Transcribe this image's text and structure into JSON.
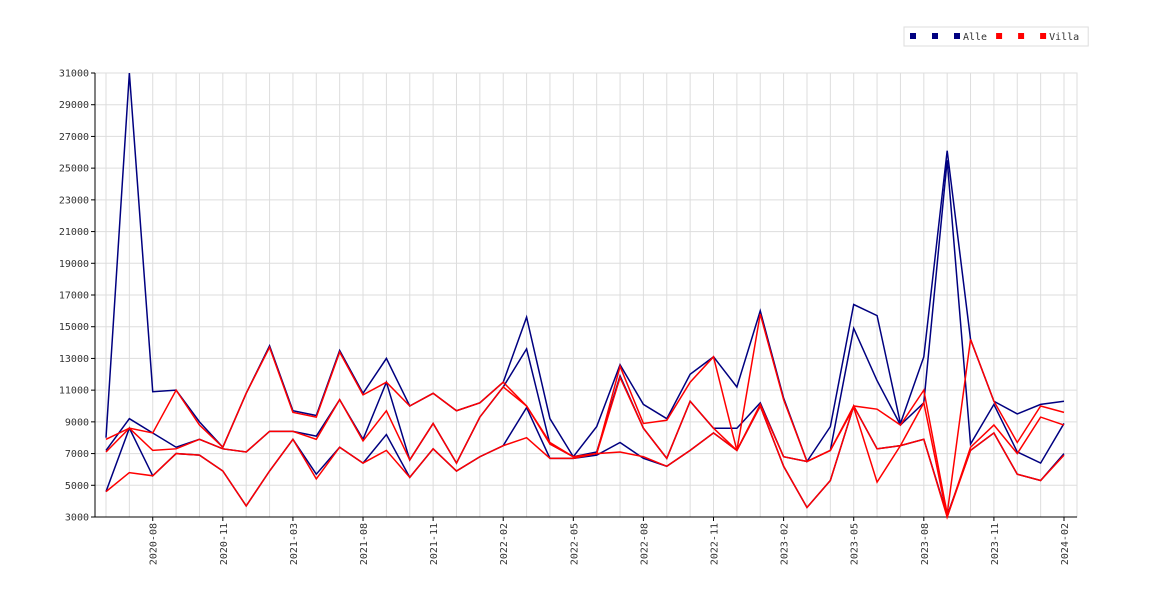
{
  "chart_data": {
    "type": "line",
    "categories": [
      null,
      null,
      "2020-08",
      null,
      null,
      "2020-11",
      null,
      null,
      "2021-03",
      null,
      null,
      "2021-08",
      null,
      null,
      "2021-11",
      null,
      null,
      "2022-02",
      null,
      null,
      "2022-05",
      null,
      null,
      "2022-08",
      null,
      null,
      "2022-11",
      null,
      null,
      "2023-02",
      null,
      null,
      "2023-05",
      null,
      null,
      "2023-08",
      null,
      null,
      "2023-11",
      null,
      null,
      "2024-02"
    ],
    "series": [
      {
        "color": "#000080",
        "values": [
          8000,
          31000,
          10900,
          11000,
          9000,
          7400,
          10800,
          13800,
          9700,
          9400,
          13500,
          10800,
          13000,
          10000,
          10800,
          9700,
          10200,
          11500,
          15600,
          9200,
          6800,
          8700,
          12600,
          10100,
          9200,
          12000,
          13100,
          11200,
          16000,
          10500,
          6500,
          8700,
          16400,
          15700,
          8900,
          13100,
          26100,
          14200,
          10300,
          9500,
          10100,
          10300
        ]
      },
      {
        "color": "#000080",
        "values": [
          7200,
          9200,
          8300,
          7400,
          7900,
          7300,
          7100,
          8400,
          8400,
          8100,
          10400,
          7900,
          11500,
          6600,
          8900,
          6400,
          9300,
          11200,
          13600,
          7600,
          6800,
          7100,
          11900,
          8600,
          6700,
          10300,
          8600,
          8600,
          10200,
          6800,
          6500,
          7200,
          14900,
          11600,
          8800,
          10200,
          25500,
          7600,
          10100,
          7100,
          6400,
          8900
        ]
      },
      {
        "name": "Alle",
        "color": "#000080",
        "values": [
          4600,
          8600,
          5600,
          7000,
          6900,
          5900,
          3700,
          5900,
          7900,
          5700,
          7400,
          6400,
          8200,
          5500,
          7300,
          5900,
          6800,
          7500,
          9900,
          6700,
          6700,
          6900,
          7700,
          6700,
          6200,
          7200,
          8300,
          7200,
          10000,
          6200,
          3600,
          5300,
          10000,
          7300,
          7500,
          7900,
          3100,
          7200,
          8300,
          5700,
          5300,
          7000
        ]
      },
      {
        "color": "#ff0000",
        "values": [
          7900,
          8600,
          8300,
          11000,
          8800,
          7400,
          10800,
          13700,
          9600,
          9300,
          13400,
          10700,
          11500,
          10000,
          10800,
          9700,
          10200,
          11500,
          10000,
          7700,
          6800,
          7000,
          12500,
          8900,
          9100,
          11500,
          13100,
          7200,
          15800,
          10400,
          6500,
          7200,
          10000,
          9800,
          8800,
          11000,
          3200,
          14200,
          10300,
          7700,
          10000,
          9600
        ]
      },
      {
        "color": "#ff0000",
        "values": [
          7100,
          8600,
          7200,
          7300,
          7900,
          7300,
          7100,
          8400,
          8400,
          7900,
          10400,
          7800,
          9700,
          6600,
          8900,
          6400,
          9300,
          11200,
          10000,
          7600,
          6800,
          7000,
          11800,
          8600,
          6700,
          10300,
          8600,
          7200,
          10100,
          6800,
          6500,
          7200,
          9900,
          5200,
          7500,
          10200,
          3000,
          7400,
          8800,
          7000,
          9300,
          8800
        ]
      },
      {
        "name": "Villa",
        "color": "#ff0000",
        "values": [
          4600,
          5800,
          5600,
          7000,
          6900,
          5900,
          3700,
          5900,
          7900,
          5400,
          7400,
          6400,
          7200,
          5500,
          7300,
          5900,
          6800,
          7500,
          8000,
          6700,
          6700,
          7000,
          7100,
          6800,
          6200,
          7200,
          8300,
          7200,
          10000,
          6200,
          3600,
          5300,
          10000,
          7300,
          7500,
          7900,
          3000,
          7200,
          8300,
          5700,
          5300,
          6900
        ]
      }
    ],
    "ylim": [
      3000,
      31000
    ],
    "yticks": [
      3000,
      5000,
      7000,
      9000,
      11000,
      13000,
      15000,
      17000,
      19000,
      21000,
      23000,
      25000,
      27000,
      29000,
      31000
    ],
    "grid": true,
    "legend": "top-right"
  }
}
